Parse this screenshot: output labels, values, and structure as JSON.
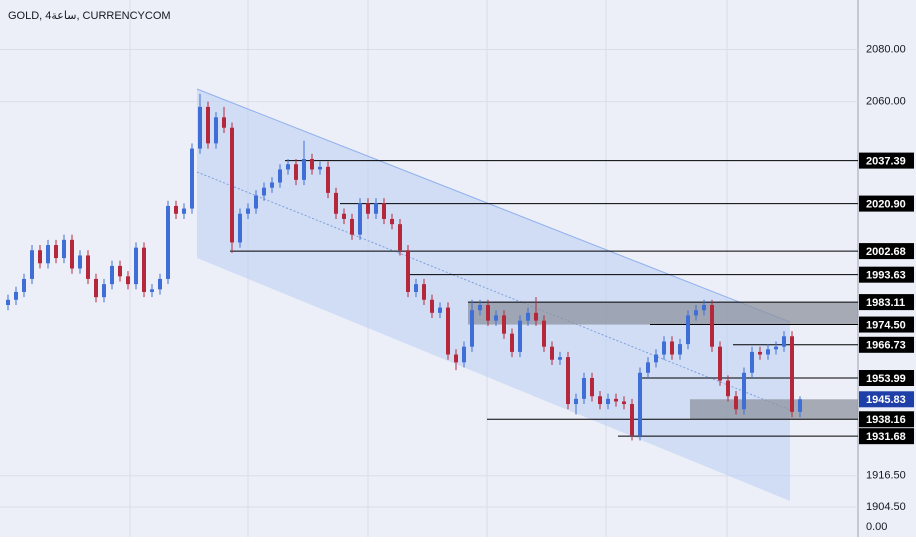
{
  "chart_data": {
    "type": "candlestick",
    "title": "GOLD, 4ساعة, CURRENCYCOM",
    "up_color": "#3f6fd6",
    "down_color": "#b5283c",
    "grid": true,
    "ylim": [
      1893,
      2099
    ],
    "yticks": [
      {
        "value": 2080,
        "label": "2080.00"
      },
      {
        "value": 2060,
        "label": "2060.00"
      },
      {
        "value": 1916.5,
        "label": "1916.50"
      },
      {
        "value": 1904.5,
        "label": "1904.50"
      }
    ],
    "scale_footer": "0.00",
    "open": [
      1982,
      1984,
      1987,
      1992,
      2003,
      1998,
      2005,
      2000,
      2007,
      1996,
      2001,
      1992,
      1985,
      1990,
      1997,
      1993,
      1990,
      2004,
      1987,
      1988,
      1992,
      2020,
      2017,
      2019,
      2042,
      2058,
      2044,
      2054,
      2050,
      2006,
      2017,
      2019,
      2024,
      2027,
      2029,
      2034,
      2036,
      2030,
      2038,
      2034,
      2035,
      2025,
      2017,
      2015,
      2009,
      2021,
      2017,
      2021,
      2015,
      2013,
      2003,
      1987,
      1990,
      1984,
      1979,
      1981,
      1963,
      1960,
      1966,
      1980,
      1982,
      1976,
      1978,
      1971,
      1964,
      1976,
      1979,
      1976,
      1966,
      1961,
      1962,
      1944,
      1946,
      1954,
      1947,
      1944,
      1946,
      1945,
      1944,
      1932,
      1956,
      1960,
      1963,
      1968,
      1963,
      1967,
      1978,
      1980,
      1982,
      1966,
      1953,
      1947,
      1942,
      1956,
      1964,
      1963,
      1965,
      1966,
      1970,
      1941
    ],
    "high": [
      1986,
      1989,
      1994,
      2005,
      2005,
      2007,
      2007,
      2009,
      2009,
      2003,
      2003,
      1994,
      1992,
      1999,
      1999,
      1995,
      2006,
      2006,
      1990,
      1994,
      2022,
      2022,
      2021,
      2044,
      2063,
      2060,
      2056,
      2058,
      2052,
      2019,
      2021,
      2026,
      2029,
      2031,
      2036,
      2038,
      2038,
      2045,
      2040,
      2037,
      2037,
      2027,
      2019,
      2017,
      2023,
      2023,
      2023,
      2023,
      2017,
      2015,
      2005,
      1992,
      1992,
      1986,
      1983,
      1983,
      1965,
      1968,
      1984,
      1984,
      1984,
      1980,
      1980,
      1973,
      1978,
      1981,
      1985,
      1978,
      1968,
      1964,
      1964,
      1948,
      1956,
      1956,
      1949,
      1948,
      1948,
      1947,
      1946,
      1958,
      1962,
      1965,
      1970,
      1970,
      1969,
      1980,
      1982,
      1984,
      1984,
      1968,
      1955,
      1949,
      1958,
      1966,
      1966,
      1967,
      1968,
      1972,
      1972,
      1947
    ],
    "low": [
      1980,
      1982,
      1985,
      1990,
      1996,
      1996,
      1998,
      1998,
      1994,
      1994,
      1990,
      1983,
      1983,
      1988,
      1991,
      1988,
      1988,
      1985,
      1985,
      1986,
      1990,
      2015,
      2015,
      2017,
      2040,
      2042,
      2042,
      2048,
      2002,
      2004,
      2015,
      2017,
      2022,
      2025,
      2027,
      2032,
      2028,
      2028,
      2032,
      2032,
      2023,
      2015,
      2013,
      2007,
      2007,
      2015,
      2015,
      2013,
      2011,
      2001,
      1985,
      1985,
      1982,
      1977,
      1977,
      1961,
      1957,
      1958,
      1964,
      1978,
      1974,
      1974,
      1969,
      1962,
      1962,
      1974,
      1974,
      1964,
      1959,
      1959,
      1942,
      1940,
      1944,
      1945,
      1942,
      1942,
      1943,
      1942,
      1930,
      1930,
      1954,
      1958,
      1961,
      1961,
      1961,
      1965,
      1976,
      1978,
      1964,
      1951,
      1945,
      1940,
      1940,
      1954,
      1961,
      1961,
      1963,
      1964,
      1939,
      1939
    ],
    "close": [
      1984,
      1987,
      1992,
      2003,
      1998,
      2005,
      2000,
      2007,
      1996,
      2001,
      1992,
      1985,
      1990,
      1997,
      1993,
      1990,
      2004,
      1987,
      1988,
      1992,
      2020,
      2017,
      2019,
      2042,
      2058,
      2044,
      2054,
      2050,
      2006,
      2017,
      2019,
      2024,
      2027,
      2029,
      2034,
      2036,
      2030,
      2038,
      2034,
      2035,
      2025,
      2017,
      2015,
      2009,
      2021,
      2017,
      2021,
      2015,
      2013,
      2003,
      1987,
      1990,
      1984,
      1979,
      1981,
      1963,
      1960,
      1966,
      1980,
      1982,
      1976,
      1978,
      1971,
      1964,
      1976,
      1979,
      1976,
      1966,
      1961,
      1962,
      1944,
      1946,
      1954,
      1947,
      1944,
      1946,
      1945,
      1944,
      1932,
      1956,
      1960,
      1963,
      1968,
      1963,
      1967,
      1978,
      1980,
      1982,
      1966,
      1953,
      1947,
      1942,
      1956,
      1964,
      1963,
      1965,
      1966,
      1970,
      1941,
      1945.83
    ],
    "levels": {
      "values": [
        2037.39,
        2020.9,
        2002.68,
        1993.63,
        1983.11,
        1974.5,
        1966.73,
        1953.99,
        1938.16,
        1931.68
      ],
      "value_labels": [
        "2037.39",
        "2020.90",
        "2002.68",
        "1993.63",
        "1983.11",
        "1974.50",
        "1966.73",
        "1953.99",
        "1938.16",
        "1931.68"
      ]
    }
  }
}
